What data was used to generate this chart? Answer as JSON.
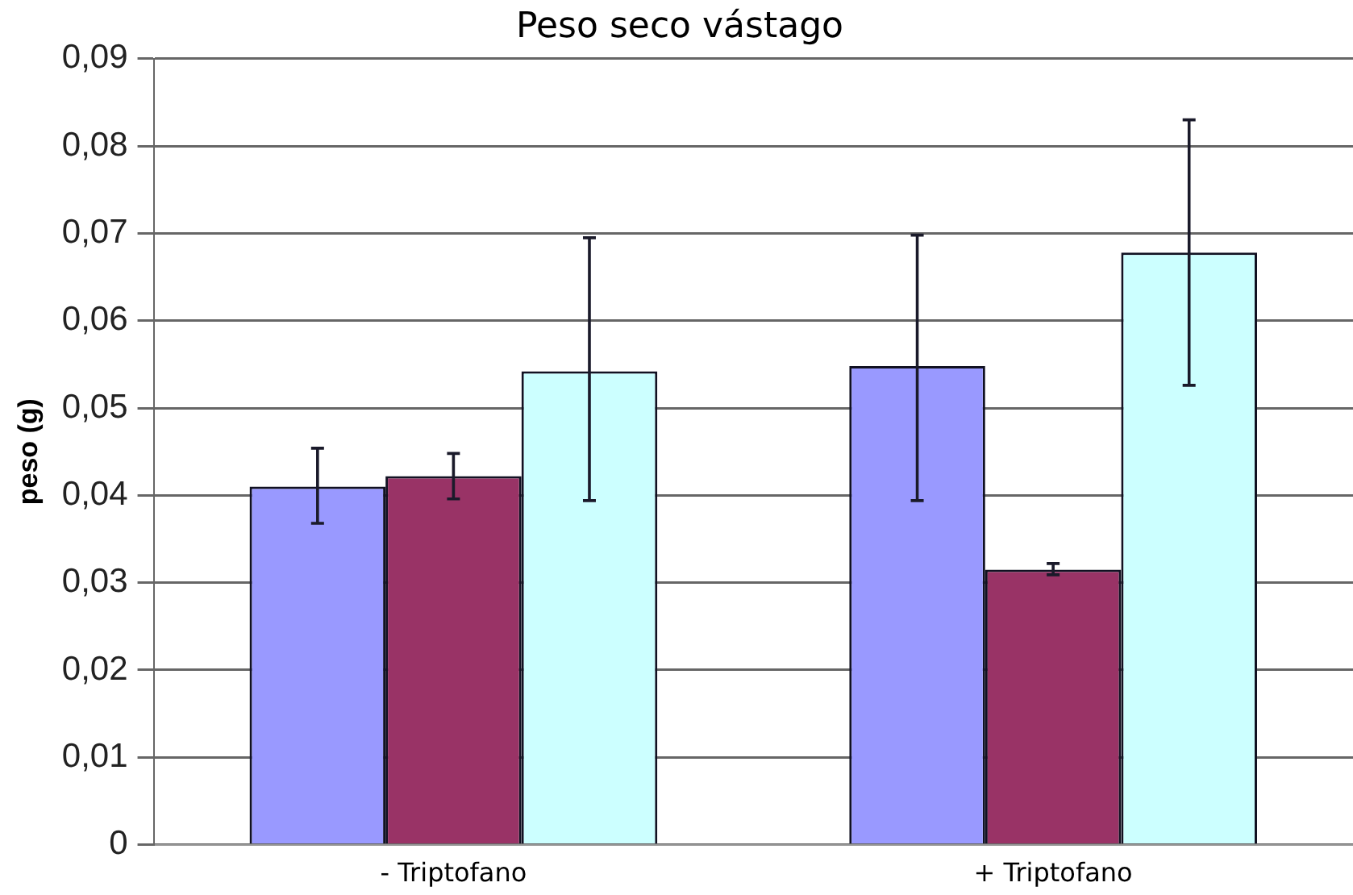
{
  "chart_data": {
    "type": "bar",
    "title": "Peso seco vástago",
    "ylabel": "peso (g)",
    "categories": [
      "- Triptofano",
      "+ Triptofano"
    ],
    "series": [
      {
        "color": "#9999ff",
        "values": [
          0.041,
          0.0548
        ],
        "errors": [
          [
            0.0368,
            0.0454
          ],
          [
            0.0394,
            0.0698
          ]
        ]
      },
      {
        "color": "#993366",
        "values": [
          0.0422,
          0.0315
        ],
        "errors": [
          [
            0.0396,
            0.0448
          ],
          [
            0.0309,
            0.0322
          ]
        ]
      },
      {
        "color": "#ccffff",
        "values": [
          0.0542,
          0.0678
        ],
        "errors": [
          [
            0.0394,
            0.0695
          ],
          [
            0.0526,
            0.083
          ]
        ]
      }
    ],
    "ylim": [
      0,
      0.09
    ],
    "yticks": [
      0,
      {
        "value": 0.01,
        "label": "0,01"
      },
      {
        "value": 0.02,
        "label": "0,02"
      },
      {
        "value": 0.03,
        "label": "0,03"
      },
      {
        "value": 0.04,
        "label": "0,04"
      },
      {
        "value": 0.05,
        "label": "0,05"
      },
      {
        "value": 0.06,
        "label": "0,06"
      },
      {
        "value": 0.07,
        "label": "0,07"
      },
      {
        "value": 0.08,
        "label": "0,08"
      },
      {
        "value": 0.09,
        "label": "0,09"
      }
    ],
    "grid": "y",
    "legend": false
  }
}
